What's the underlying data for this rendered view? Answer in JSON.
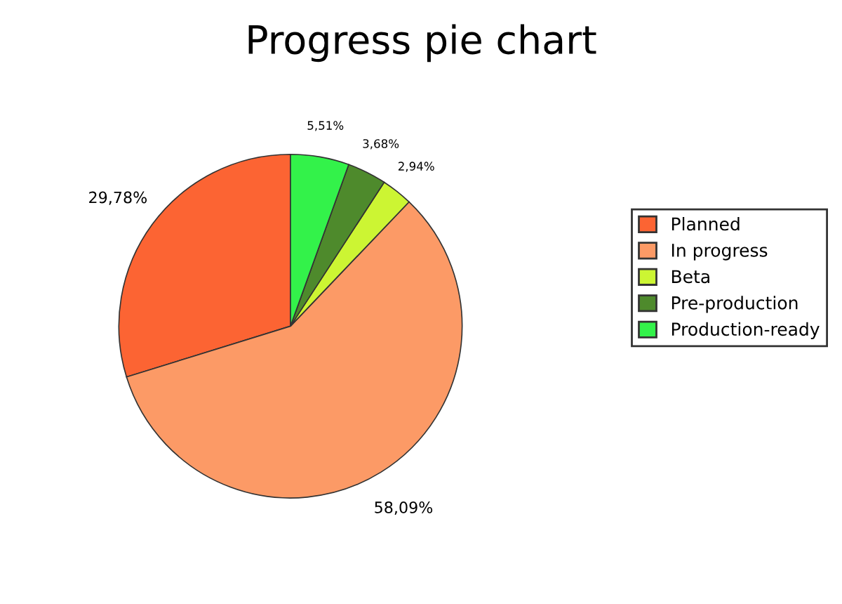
{
  "chart_data": {
    "type": "pie",
    "title": "Progress pie chart",
    "categories": [
      "Planned",
      "In progress",
      "Beta",
      "Pre-production",
      "Production-ready"
    ],
    "values": [
      29.78,
      58.09,
      2.94,
      3.68,
      5.51
    ],
    "colors": [
      "#fc6433",
      "#fc9a66",
      "#ccf533",
      "#4e8a2c",
      "#33f24a"
    ],
    "value_labels": [
      "29,78%",
      "58,09%",
      "2,94%",
      "3,68%",
      "5,51%"
    ],
    "legend": "right"
  }
}
